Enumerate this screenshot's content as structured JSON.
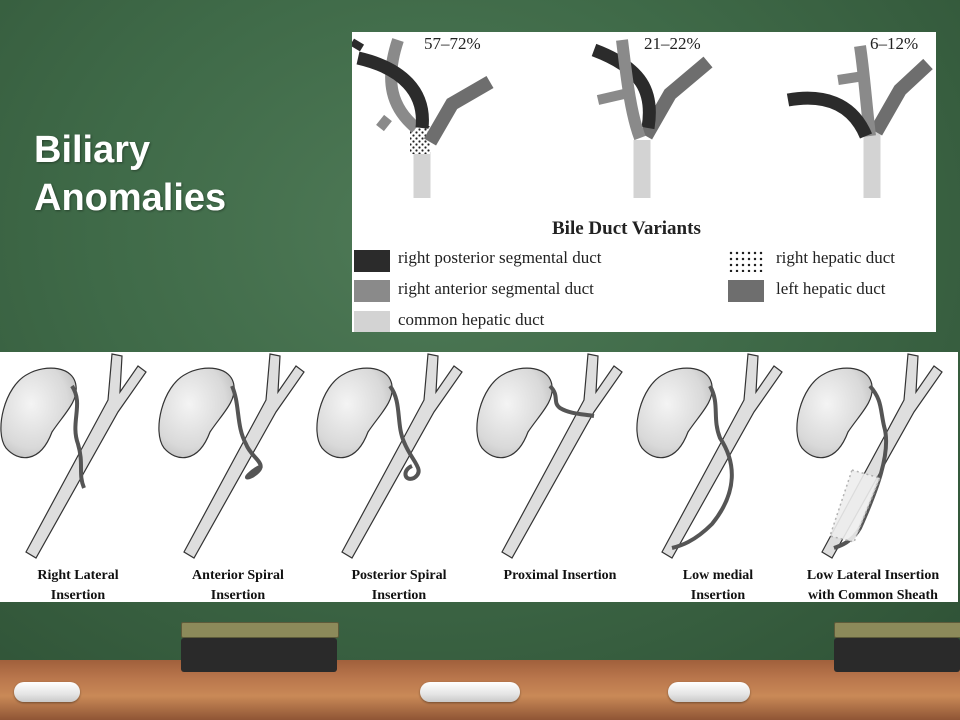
{
  "slide": {
    "title_line1": "Biliary",
    "title_line2": "Anomalies"
  },
  "variants": {
    "percentages": [
      "57–72%",
      "21–22%",
      "6–12%"
    ],
    "legend_title": "Bile Duct Variants",
    "legend": [
      {
        "label": "right posterior segmental duct",
        "color": "#2b2b2b"
      },
      {
        "label": "right anterior segmental duct",
        "color": "#8a8a8a"
      },
      {
        "label": "common hepatic duct",
        "color": "#d3d3d3"
      },
      {
        "label": "right hepatic duct",
        "color": "dotted"
      },
      {
        "label": "left hepatic duct",
        "color": "#6e6e6e"
      }
    ]
  },
  "insertions": {
    "captions": [
      {
        "line1": "Right Lateral",
        "line2": "Insertion"
      },
      {
        "line1": "Anterior Spiral",
        "line2": "Insertion"
      },
      {
        "line1": "Posterior Spiral",
        "line2": "Insertion"
      },
      {
        "line1": "Proximal Insertion",
        "line2": ""
      },
      {
        "line1": "Low medial",
        "line2": "Insertion"
      },
      {
        "line1": "Low Lateral Insertion",
        "line2": "with Common Sheath"
      }
    ]
  }
}
